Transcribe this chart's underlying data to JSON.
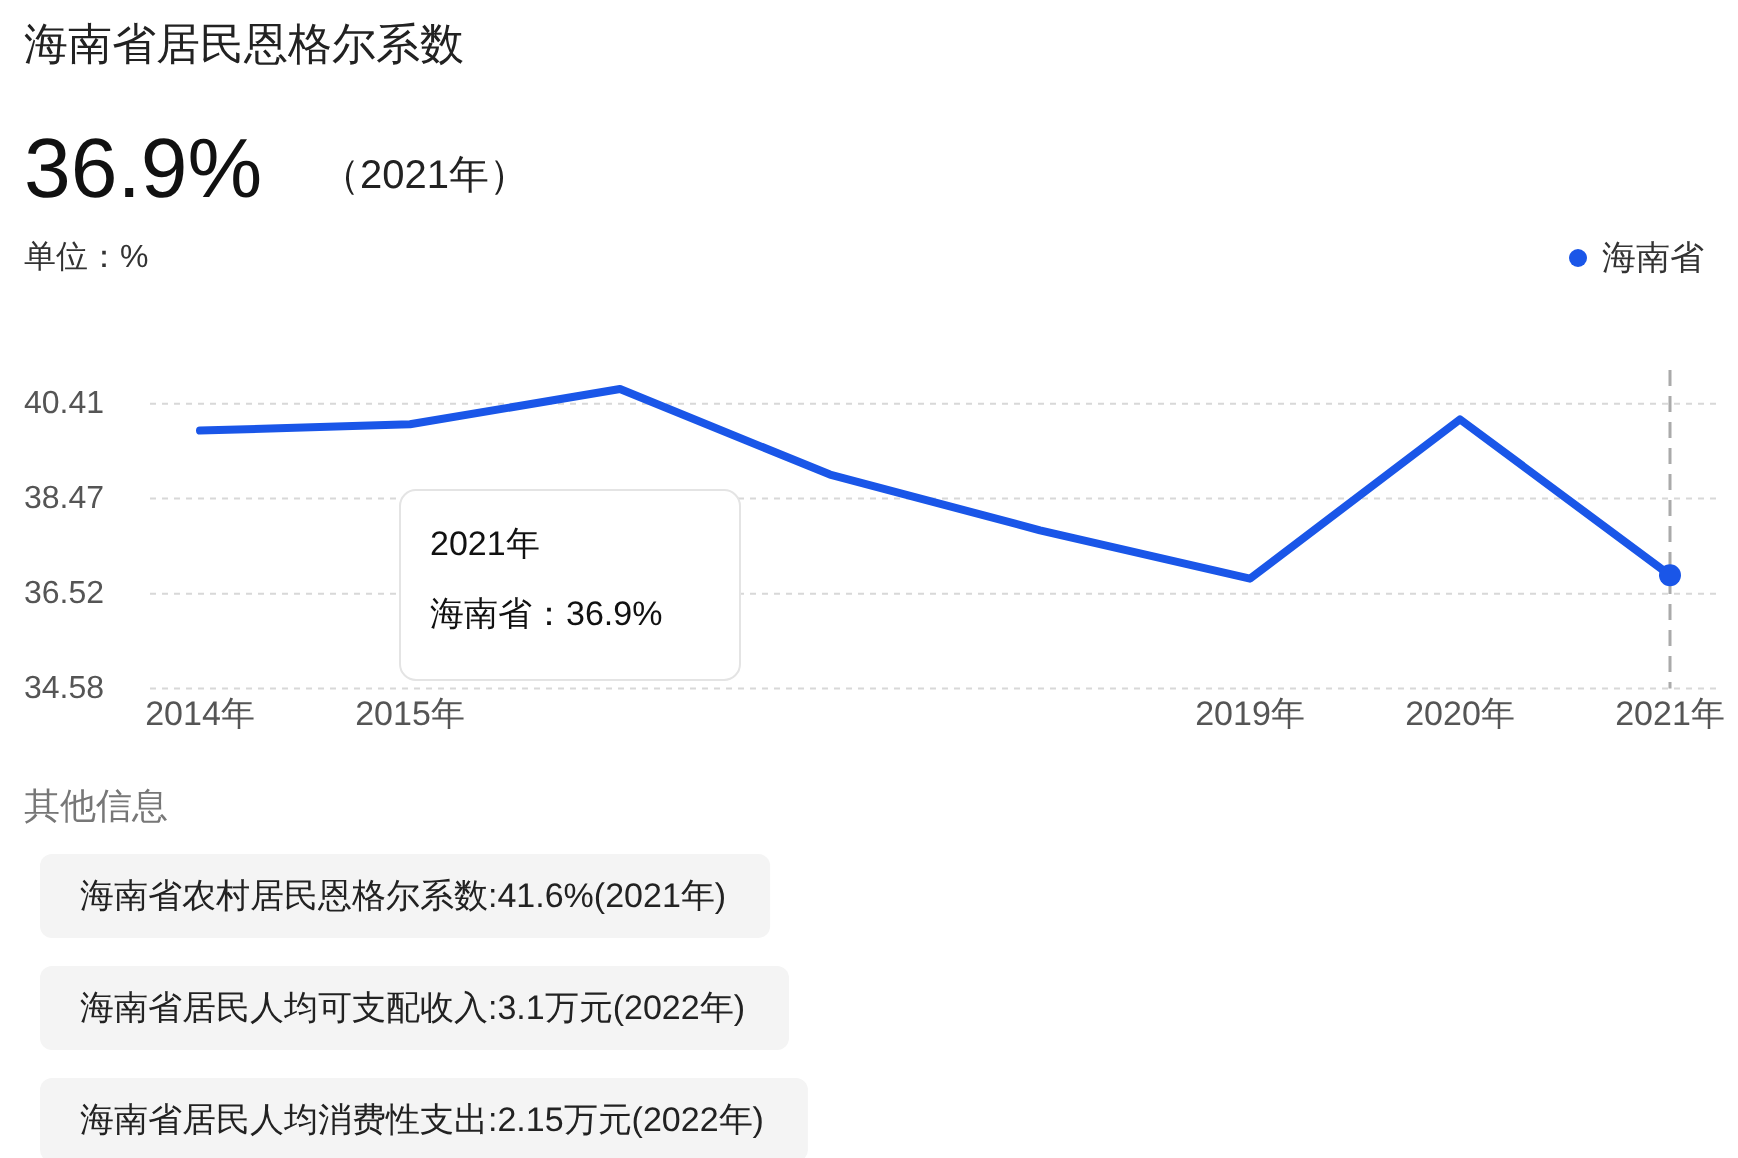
{
  "chart_data": {
    "type": "line",
    "title": "海南省居民恩格尔系数",
    "ylabel": "单位：%",
    "categories": [
      "2014年",
      "2015年",
      null,
      null,
      null,
      "2019年",
      "2020年",
      "2021年"
    ],
    "series": [
      {
        "name": "海南省",
        "color": "#1a56e8",
        "values": [
          39.86,
          39.99,
          40.71,
          38.96,
          37.82,
          36.83,
          40.09,
          36.9
        ]
      }
    ],
    "ylim": [
      34.58,
      41.1
    ],
    "yticks": [
      34.58,
      36.52,
      38.47,
      40.41
    ],
    "grid": "y",
    "ref_lines": [
      {
        "axis": "x",
        "value": "2021年",
        "line_style": "dashed",
        "color": "#aaaaaa"
      }
    ],
    "legend": "top right",
    "marker": "none",
    "line_style": "solid",
    "annotations": [
      "36.9%",
      "（2021年）",
      "2021年",
      "海南省：36.9%",
      "其他信息",
      "海南省农村居民恩格尔系数:41.6%(2021年)",
      "海南省居民人均可支配收入:3.1万元(2022年)",
      "海南省居民人均消费性支出:2.15万元(2022年)"
    ]
  }
}
